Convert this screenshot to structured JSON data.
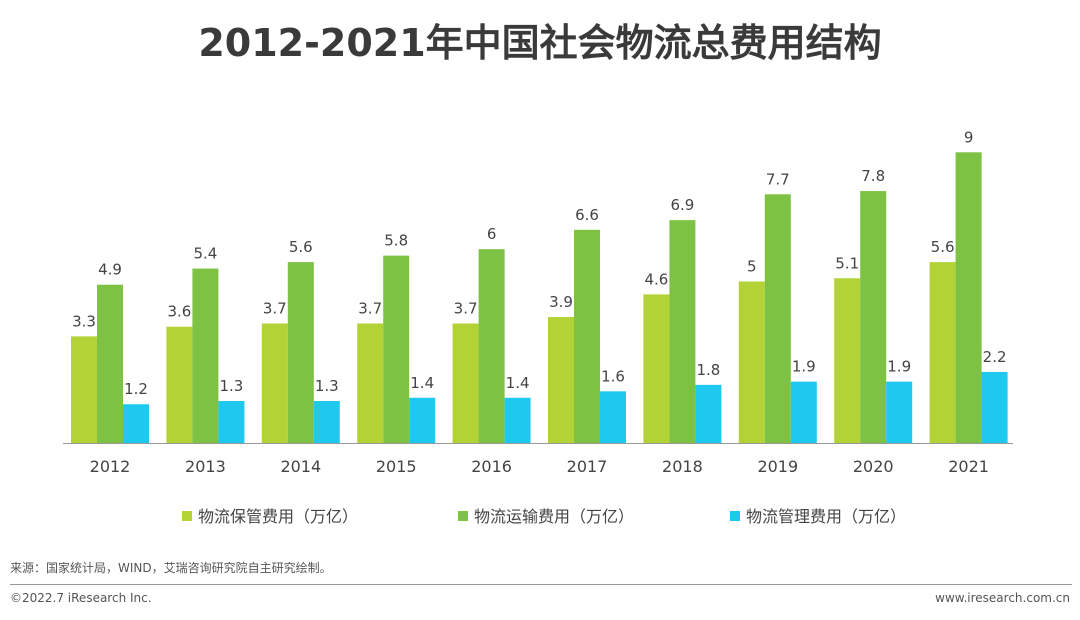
{
  "title": "2012-2021年中国社会物流总费用结构",
  "colors": {
    "storage": "#b2d235",
    "transport": "#7dc242",
    "management": "#1ec8ef",
    "axis": "#999999"
  },
  "chart_data": {
    "type": "bar",
    "title": "2012-2021年中国社会物流总费用结构",
    "categories": [
      "2012",
      "2013",
      "2014",
      "2015",
      "2016",
      "2017",
      "2018",
      "2019",
      "2020",
      "2021"
    ],
    "series": [
      {
        "name": "物流保管费用（万亿）",
        "values": [
          3.3,
          3.6,
          3.7,
          3.7,
          3.7,
          3.9,
          4.6,
          5,
          5.1,
          5.6
        ]
      },
      {
        "name": "物流运输费用（万亿）",
        "values": [
          4.9,
          5.4,
          5.6,
          5.8,
          6,
          6.6,
          6.9,
          7.7,
          7.8,
          9
        ]
      },
      {
        "name": "物流管理费用（万亿）",
        "values": [
          1.2,
          1.3,
          1.3,
          1.4,
          1.4,
          1.6,
          1.8,
          1.9,
          1.9,
          2.2
        ]
      }
    ],
    "xlabel": "",
    "ylabel": "",
    "ylim": [
      0,
      9
    ],
    "grid": false,
    "legend": "bottom"
  },
  "footer": {
    "source": "来源：国家统计局，WIND，艾瑞咨询研究院自主研究绘制。",
    "copyright": "©2022.7 iResearch Inc.",
    "website": "www.iresearch.com.cn"
  }
}
